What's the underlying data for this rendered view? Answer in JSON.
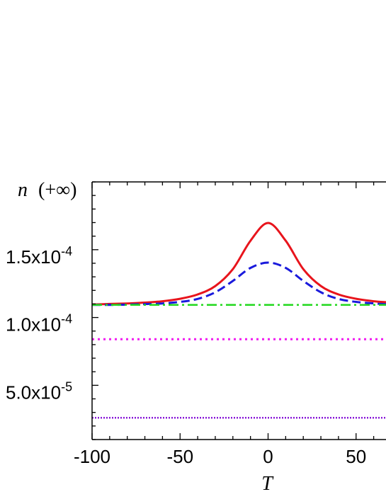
{
  "chart_data": {
    "type": "line",
    "title": "",
    "xlabel": "T",
    "ylabel": {
      "var": "n",
      "arg": "(+∞)"
    },
    "xlim": [
      -100,
      67
    ],
    "ylim": [
      1e-05,
      0.0002
    ],
    "x_ticks": [
      {
        "value": -100,
        "label": "-100"
      },
      {
        "value": -50,
        "label": "-50"
      },
      {
        "value": 0,
        "label": "0"
      },
      {
        "value": 50,
        "label": "50"
      }
    ],
    "y_ticks": [
      {
        "value": 5e-05,
        "mantissa": "5.0x10",
        "exp": "-5"
      },
      {
        "value": 0.0001,
        "mantissa": "1.0x10",
        "exp": "-4"
      },
      {
        "value": 0.00015,
        "mantissa": "1.5x10",
        "exp": "-4"
      }
    ],
    "x_minor_step": 10,
    "y_minor_step": 1e-05,
    "grid": false,
    "legend": "none",
    "series": [
      {
        "style": "solid",
        "color": "#e8141c",
        "x": [
          -100,
          -90,
          -80,
          -70,
          -60,
          -50,
          -40,
          -30,
          -20,
          -10,
          0,
          10,
          20,
          30,
          40,
          50,
          60,
          67
        ],
        "y": [
          0.0001096,
          0.00011,
          0.0001104,
          0.000111,
          0.000112,
          0.0001138,
          0.000117,
          0.0001232,
          0.0001357,
          0.0001566,
          0.0001697,
          0.0001566,
          0.0001357,
          0.0001232,
          0.000117,
          0.0001138,
          0.000112,
          0.0001113
        ]
      },
      {
        "style": "dashed",
        "color": "#1a1adc",
        "x": [
          -100,
          -90,
          -80,
          -70,
          -60,
          -50,
          -40,
          -30,
          -20,
          -10,
          0,
          10,
          20,
          30,
          40,
          50,
          60,
          67
        ],
        "y": [
          0.0001093,
          0.0001093,
          0.0001095,
          0.0001099,
          0.0001104,
          0.0001115,
          0.0001137,
          0.0001186,
          0.000127,
          0.0001366,
          0.0001405,
          0.0001366,
          0.000127,
          0.0001186,
          0.0001137,
          0.0001115,
          0.0001104,
          0.0001098
        ]
      },
      {
        "style": "dashdot",
        "color": "#22d81e",
        "x": [
          -100,
          67
        ],
        "y": [
          0.0001093,
          0.0001093
        ]
      },
      {
        "style": "dotted",
        "color": "#f01cf0",
        "x": [
          -100,
          67
        ],
        "y": [
          8.4e-05,
          8.4e-05
        ]
      },
      {
        "style": "dotted-dense",
        "color": "#8a1ad8",
        "x": [
          -100,
          67
        ],
        "y": [
          2.6e-05,
          2.6e-05
        ]
      }
    ]
  }
}
